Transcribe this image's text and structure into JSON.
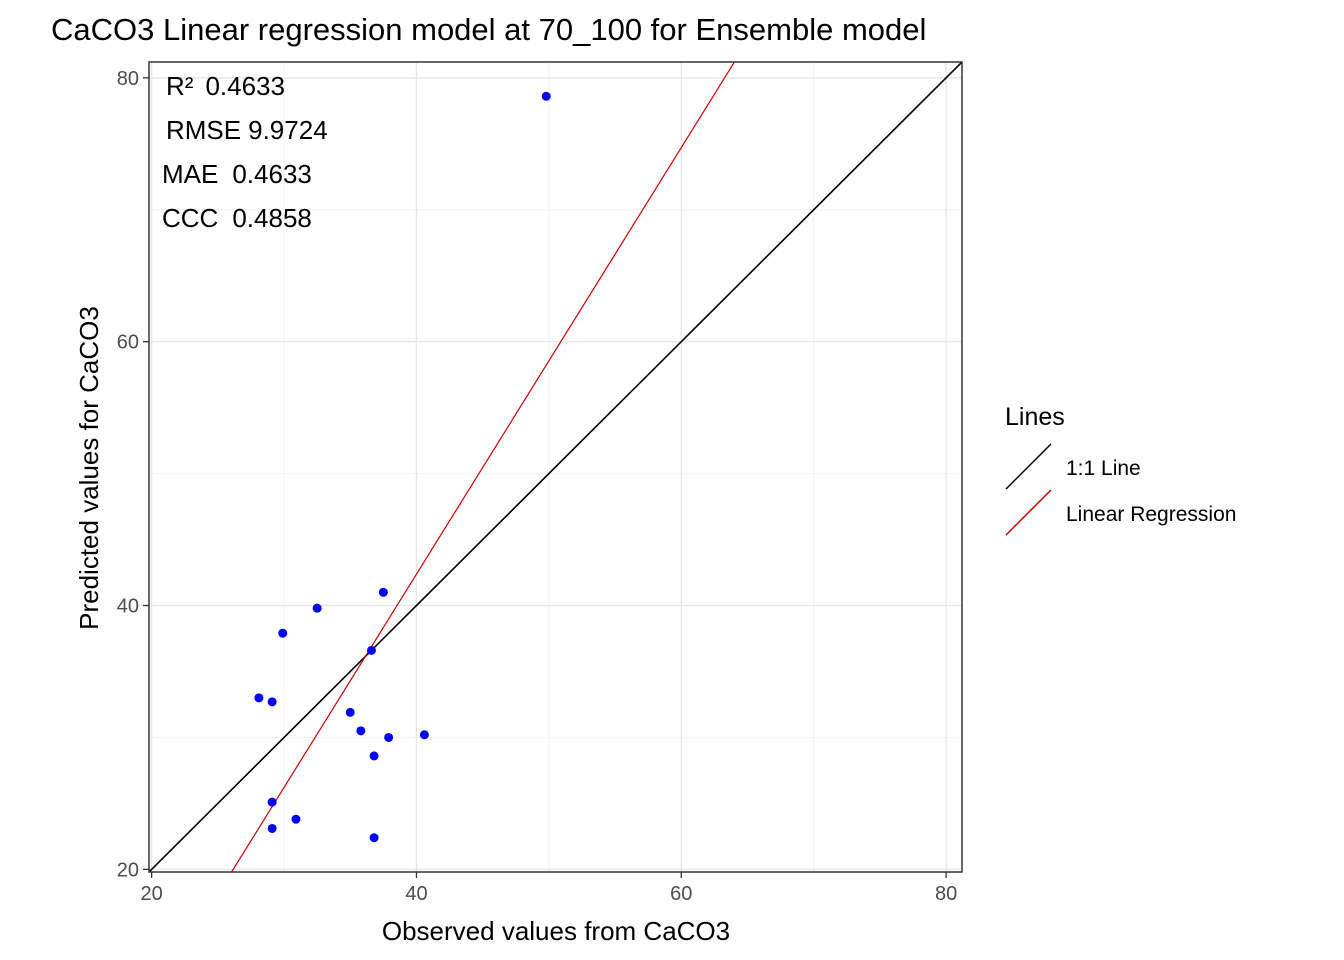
{
  "chart_data": {
    "type": "scatter",
    "title": "CaCO3  Linear regression model at  70_100  for  Ensemble  model",
    "xlabel": "Observed values from CaCO3",
    "ylabel": "Predicted values for CaCO3",
    "xlim": [
      19.8,
      81.2
    ],
    "ylim": [
      19.8,
      81.2
    ],
    "x_ticks": [
      20,
      40,
      60,
      80
    ],
    "y_ticks": [
      20,
      40,
      60,
      80
    ],
    "x_tick_labels": [
      "20",
      "40",
      "60",
      "80"
    ],
    "y_tick_labels": [
      "20",
      "40",
      "60",
      "80"
    ],
    "grid": true,
    "points": [
      {
        "x": 49.8,
        "y": 78.6
      },
      {
        "x": 37.5,
        "y": 41.0
      },
      {
        "x": 32.5,
        "y": 39.8
      },
      {
        "x": 29.9,
        "y": 37.9
      },
      {
        "x": 36.6,
        "y": 36.6
      },
      {
        "x": 28.1,
        "y": 33.0
      },
      {
        "x": 29.1,
        "y": 32.7
      },
      {
        "x": 35.0,
        "y": 31.9
      },
      {
        "x": 35.8,
        "y": 30.5
      },
      {
        "x": 37.9,
        "y": 30.0
      },
      {
        "x": 40.6,
        "y": 30.2
      },
      {
        "x": 36.8,
        "y": 28.6
      },
      {
        "x": 29.1,
        "y": 25.1
      },
      {
        "x": 30.9,
        "y": 23.8
      },
      {
        "x": 29.1,
        "y": 23.1
      },
      {
        "x": 36.8,
        "y": 22.4
      }
    ],
    "point_color": "#0000FF",
    "lines": [
      {
        "name": "1:1 Line",
        "color": "#000000",
        "slope": 1.0,
        "intercept": 0.0
      },
      {
        "name": "Linear Regression",
        "color": "#CC0000",
        "slope": 1.6167,
        "intercept": -22.29
      }
    ],
    "legend": {
      "title": "Lines",
      "position": "right"
    },
    "annotations": [
      {
        "label": "R²",
        "value": "0.4633"
      },
      {
        "label": "RMSE",
        "value": "9.9724"
      },
      {
        "label": "MAE",
        "value": "0.4633"
      },
      {
        "label": "CCC",
        "value": "0.4858"
      }
    ]
  }
}
